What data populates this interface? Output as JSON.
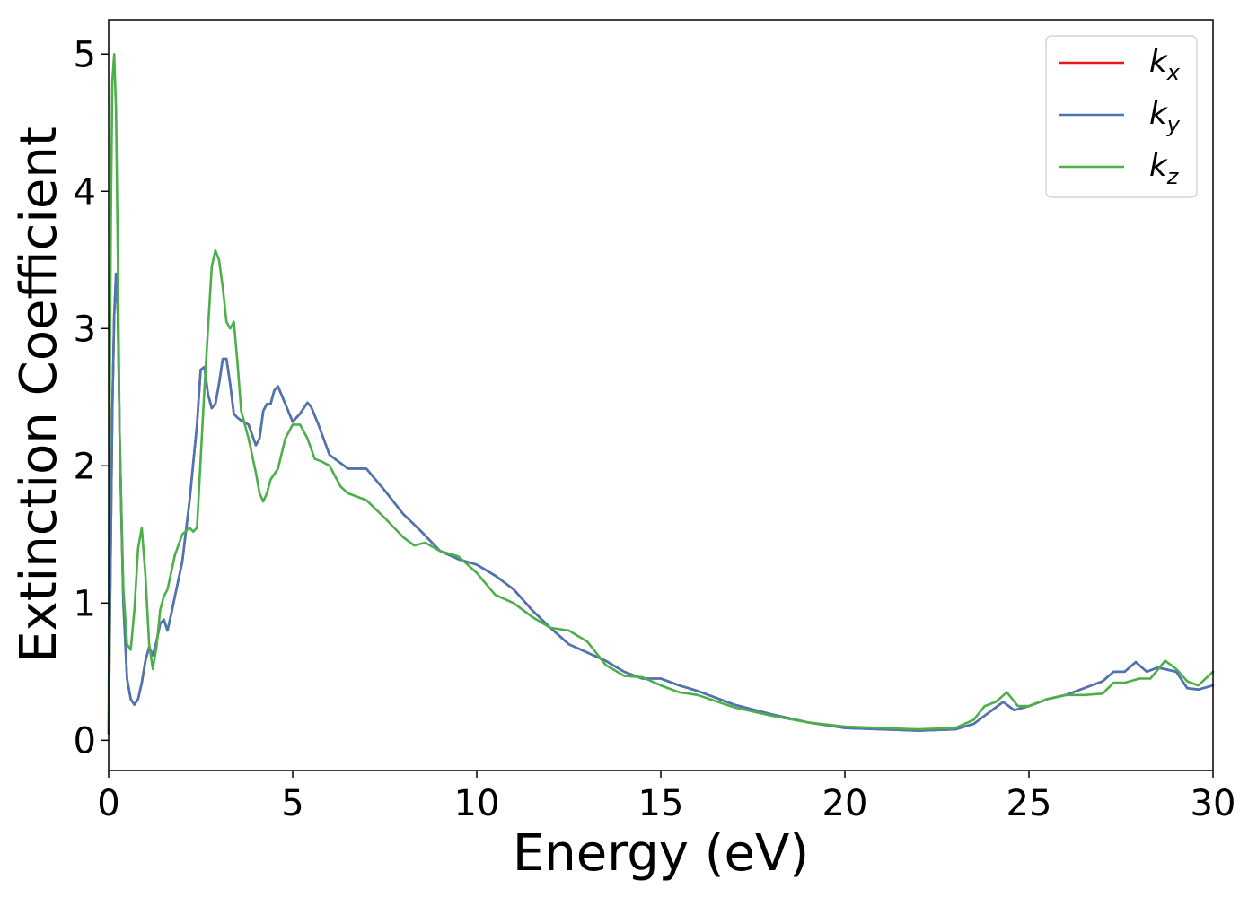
{
  "chart_data": {
    "type": "line",
    "xlabel": "Energy (eV)",
    "ylabel": "Extinction Coefficient",
    "xlim": [
      0,
      30
    ],
    "ylim": [
      -0.22,
      5.25
    ],
    "xticks": [
      0,
      5,
      10,
      15,
      20,
      25,
      30
    ],
    "yticks": [
      0,
      1,
      2,
      3,
      4,
      5
    ],
    "grid": false,
    "legend_position": "top-right",
    "series": [
      {
        "name": "k_x",
        "legend_main": "k",
        "legend_sub": "x",
        "color": "#e41a1c",
        "x": [
          0.0,
          0.05,
          0.1,
          0.15,
          0.2,
          0.25,
          0.3,
          0.4,
          0.5,
          0.6,
          0.7,
          0.8,
          0.9,
          1.0,
          1.1,
          1.2,
          1.3,
          1.4,
          1.5,
          1.6,
          1.7,
          1.8,
          2.0,
          2.2,
          2.4,
          2.5,
          2.6,
          2.7,
          2.8,
          2.9,
          3.0,
          3.1,
          3.2,
          3.3,
          3.4,
          3.5,
          3.6,
          3.8,
          4.0,
          4.1,
          4.2,
          4.3,
          4.4,
          4.5,
          4.6,
          4.8,
          5.0,
          5.2,
          5.4,
          5.5,
          5.7,
          6.0,
          6.5,
          7.0,
          7.5,
          8.0,
          8.5,
          9.0,
          9.5,
          10.0,
          10.5,
          11.0,
          11.5,
          12.0,
          12.5,
          13.0,
          13.5,
          14.0,
          14.5,
          15.0,
          15.5,
          16.0,
          17.0,
          18.0,
          19.0,
          20.0,
          21.0,
          22.0,
          23.0,
          23.5,
          24.0,
          24.3,
          24.6,
          25.0,
          25.5,
          26.0,
          26.5,
          27.0,
          27.3,
          27.6,
          27.9,
          28.2,
          28.5,
          29.0,
          29.3,
          29.6,
          30.0
        ],
        "y": [
          0.05,
          1.2,
          2.4,
          3.1,
          3.4,
          3.1,
          2.2,
          1.0,
          0.45,
          0.3,
          0.26,
          0.3,
          0.42,
          0.58,
          0.68,
          0.62,
          0.72,
          0.85,
          0.88,
          0.8,
          0.92,
          1.05,
          1.3,
          1.75,
          2.3,
          2.7,
          2.72,
          2.52,
          2.42,
          2.45,
          2.6,
          2.78,
          2.78,
          2.6,
          2.38,
          2.35,
          2.33,
          2.3,
          2.15,
          2.2,
          2.4,
          2.45,
          2.45,
          2.55,
          2.58,
          2.45,
          2.32,
          2.38,
          2.46,
          2.43,
          2.3,
          2.08,
          1.98,
          1.98,
          1.82,
          1.65,
          1.52,
          1.38,
          1.32,
          1.28,
          1.2,
          1.1,
          0.95,
          0.82,
          0.7,
          0.64,
          0.58,
          0.5,
          0.45,
          0.45,
          0.4,
          0.36,
          0.26,
          0.19,
          0.13,
          0.09,
          0.08,
          0.07,
          0.08,
          0.12,
          0.22,
          0.28,
          0.22,
          0.25,
          0.3,
          0.33,
          0.38,
          0.43,
          0.5,
          0.5,
          0.57,
          0.5,
          0.53,
          0.5,
          0.38,
          0.37,
          0.4
        ]
      },
      {
        "name": "k_y",
        "legend_main": "k",
        "legend_sub": "y",
        "color": "#4a77b4",
        "x": [
          0.0,
          0.05,
          0.1,
          0.15,
          0.2,
          0.25,
          0.3,
          0.4,
          0.5,
          0.6,
          0.7,
          0.8,
          0.9,
          1.0,
          1.1,
          1.2,
          1.3,
          1.4,
          1.5,
          1.6,
          1.7,
          1.8,
          2.0,
          2.2,
          2.4,
          2.5,
          2.6,
          2.7,
          2.8,
          2.9,
          3.0,
          3.1,
          3.2,
          3.3,
          3.4,
          3.5,
          3.6,
          3.8,
          4.0,
          4.1,
          4.2,
          4.3,
          4.4,
          4.5,
          4.6,
          4.8,
          5.0,
          5.2,
          5.4,
          5.5,
          5.7,
          6.0,
          6.5,
          7.0,
          7.5,
          8.0,
          8.5,
          9.0,
          9.5,
          10.0,
          10.5,
          11.0,
          11.5,
          12.0,
          12.5,
          13.0,
          13.5,
          14.0,
          14.5,
          15.0,
          15.5,
          16.0,
          17.0,
          18.0,
          19.0,
          20.0,
          21.0,
          22.0,
          23.0,
          23.5,
          24.0,
          24.3,
          24.6,
          25.0,
          25.5,
          26.0,
          26.5,
          27.0,
          27.3,
          27.6,
          27.9,
          28.2,
          28.5,
          29.0,
          29.3,
          29.6,
          30.0
        ],
        "y": [
          0.05,
          1.2,
          2.4,
          3.1,
          3.4,
          3.1,
          2.2,
          1.0,
          0.45,
          0.3,
          0.26,
          0.3,
          0.42,
          0.58,
          0.68,
          0.62,
          0.72,
          0.85,
          0.88,
          0.8,
          0.92,
          1.05,
          1.3,
          1.75,
          2.3,
          2.7,
          2.72,
          2.52,
          2.42,
          2.45,
          2.6,
          2.78,
          2.78,
          2.6,
          2.38,
          2.35,
          2.33,
          2.3,
          2.15,
          2.2,
          2.4,
          2.45,
          2.45,
          2.55,
          2.58,
          2.45,
          2.32,
          2.38,
          2.46,
          2.43,
          2.3,
          2.08,
          1.98,
          1.98,
          1.82,
          1.65,
          1.52,
          1.38,
          1.32,
          1.28,
          1.2,
          1.1,
          0.95,
          0.82,
          0.7,
          0.64,
          0.58,
          0.5,
          0.45,
          0.45,
          0.4,
          0.36,
          0.26,
          0.19,
          0.13,
          0.09,
          0.08,
          0.07,
          0.08,
          0.12,
          0.22,
          0.28,
          0.22,
          0.25,
          0.3,
          0.33,
          0.38,
          0.43,
          0.5,
          0.5,
          0.57,
          0.5,
          0.53,
          0.5,
          0.38,
          0.37,
          0.4
        ]
      },
      {
        "name": "k_z",
        "legend_main": "k",
        "legend_sub": "z",
        "color": "#4daf4a",
        "x": [
          0.0,
          0.03,
          0.06,
          0.1,
          0.15,
          0.2,
          0.25,
          0.3,
          0.4,
          0.5,
          0.6,
          0.7,
          0.8,
          0.9,
          1.0,
          1.1,
          1.2,
          1.3,
          1.4,
          1.5,
          1.6,
          1.8,
          2.0,
          2.2,
          2.3,
          2.4,
          2.5,
          2.6,
          2.7,
          2.8,
          2.9,
          3.0,
          3.1,
          3.2,
          3.3,
          3.4,
          3.5,
          3.6,
          3.8,
          4.0,
          4.1,
          4.2,
          4.3,
          4.4,
          4.6,
          4.8,
          5.0,
          5.2,
          5.4,
          5.6,
          5.8,
          6.0,
          6.3,
          6.5,
          7.0,
          7.5,
          8.0,
          8.3,
          8.6,
          9.0,
          9.5,
          10.0,
          10.5,
          11.0,
          11.5,
          12.0,
          12.5,
          13.0,
          13.5,
          14.0,
          14.5,
          15.0,
          15.5,
          16.0,
          17.0,
          18.0,
          19.0,
          20.0,
          21.0,
          22.0,
          23.0,
          23.5,
          23.8,
          24.1,
          24.4,
          24.7,
          25.0,
          25.5,
          26.0,
          26.5,
          27.0,
          27.3,
          27.6,
          28.0,
          28.3,
          28.7,
          29.0,
          29.3,
          29.6,
          30.0
        ],
        "y": [
          0.1,
          2.5,
          3.8,
          4.8,
          5.0,
          4.6,
          3.5,
          2.2,
          1.1,
          0.7,
          0.66,
          0.95,
          1.4,
          1.55,
          1.2,
          0.7,
          0.52,
          0.68,
          0.95,
          1.05,
          1.1,
          1.35,
          1.5,
          1.55,
          1.52,
          1.55,
          2.05,
          2.55,
          3.0,
          3.45,
          3.57,
          3.5,
          3.3,
          3.05,
          3.0,
          3.05,
          2.75,
          2.4,
          2.2,
          1.95,
          1.8,
          1.74,
          1.8,
          1.9,
          1.98,
          2.2,
          2.3,
          2.3,
          2.2,
          2.05,
          2.03,
          2.0,
          1.85,
          1.8,
          1.75,
          1.62,
          1.48,
          1.42,
          1.44,
          1.38,
          1.34,
          1.22,
          1.06,
          1.0,
          0.9,
          0.82,
          0.8,
          0.72,
          0.55,
          0.47,
          0.46,
          0.4,
          0.35,
          0.33,
          0.24,
          0.18,
          0.13,
          0.1,
          0.09,
          0.08,
          0.09,
          0.15,
          0.25,
          0.28,
          0.35,
          0.25,
          0.25,
          0.3,
          0.33,
          0.33,
          0.34,
          0.42,
          0.42,
          0.45,
          0.45,
          0.58,
          0.52,
          0.43,
          0.4,
          0.5
        ]
      }
    ]
  }
}
